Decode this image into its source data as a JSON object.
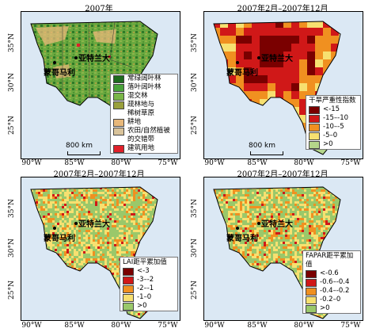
{
  "panels": [
    {
      "title": "2007年",
      "legend": {
        "title": "",
        "items": [
          {
            "label": "常绿阔叶林",
            "color": "#1e6b1e"
          },
          {
            "label": "落叶阔叶林",
            "color": "#49a33a"
          },
          {
            "label": "混交林",
            "color": "#7ab648"
          },
          {
            "label": "疏林地与",
            "color": "#9aa03c"
          },
          {
            "label": "稀树草原",
            "color": ""
          },
          {
            "label": "耕地",
            "color": "#e8b87a"
          },
          {
            "label": "农田/自然植被",
            "color": "#d9c39a"
          },
          {
            "label": "的交错带",
            "color": ""
          },
          {
            "label": "建筑用地",
            "color": "#e0202a"
          }
        ]
      }
    },
    {
      "title": "2007年2月–2007年12月",
      "legend": {
        "title": "干旱严重性指数",
        "items": [
          {
            "label": "<-15",
            "color": "#7a0000"
          },
          {
            "label": "-15–-10",
            "color": "#d01818"
          },
          {
            "label": "-10–-5",
            "color": "#f09020"
          },
          {
            "label": "-5–0",
            "color": "#f7e070"
          },
          {
            "label": ">0",
            "color": "#b5d68a"
          }
        ]
      }
    },
    {
      "title": "2007年2月–2007年12月",
      "legend": {
        "title": "LAI距平累加值",
        "items": [
          {
            "label": "<-3",
            "color": "#7a0000"
          },
          {
            "label": "-3–-2",
            "color": "#d01818"
          },
          {
            "label": "-2–-1",
            "color": "#f09020"
          },
          {
            "label": "-1–0",
            "color": "#f7e070"
          },
          {
            "label": ">0",
            "color": "#9ac86a"
          }
        ]
      }
    },
    {
      "title": "2007年2月–2007年12月",
      "legend": {
        "title": "FAPAR距平累加值",
        "items": [
          {
            "label": "<-0.6",
            "color": "#7a0000"
          },
          {
            "label": "-0.6–-0.4",
            "color": "#d01818"
          },
          {
            "label": "-0.4–-0.2",
            "color": "#f09020"
          },
          {
            "label": "-0.2–0",
            "color": "#f7e070"
          },
          {
            "label": ">0",
            "color": "#9ac86a"
          }
        ]
      }
    }
  ],
  "axes": {
    "x_ticks": [
      "90°W",
      "85°W",
      "80°W",
      "75°W"
    ],
    "y_ticks": [
      "35°N",
      "30°N",
      "25°N"
    ]
  },
  "cities": {
    "atlanta": "亚特兰大",
    "montgomery": "蒙哥马利"
  },
  "scale": {
    "label": "800 km"
  },
  "colors": {
    "sea": "#dbe8f4",
    "land_outside": "#ffffff"
  }
}
